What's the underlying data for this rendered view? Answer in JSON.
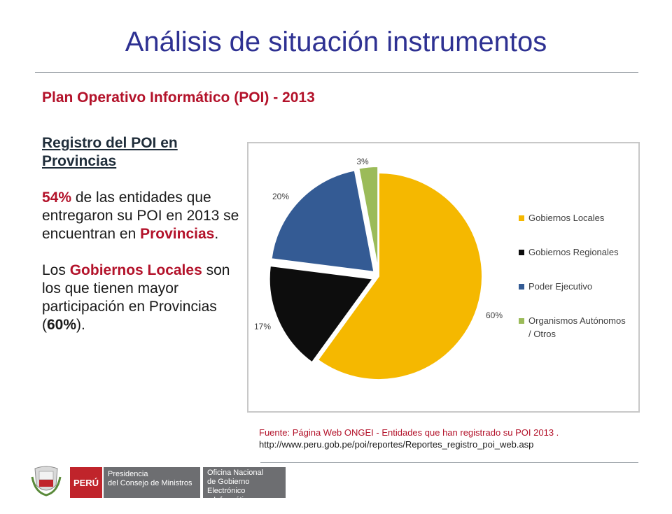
{
  "slide": {
    "title": "Análisis de situación instrumentos",
    "subtitle": "Plan Operativo Informático (POI) - 2013"
  },
  "left_panel": {
    "heading": "Registro del POI en Provincias",
    "p1": {
      "pct": "54%",
      "text_a": " de las entidades que entregaron su POI en 2013 se encuentran en ",
      "highlight": "Provincias",
      "text_b": "."
    },
    "p2": {
      "text_a": "Los ",
      "highlight": "Gobiernos Locales",
      "text_b": " son los que tienen mayor participación en Provincias (",
      "pct": "60%",
      "text_c": ")."
    }
  },
  "chart_data": {
    "type": "pie",
    "title": "",
    "slices": [
      {
        "label": "Gobiernos Locales",
        "value": 60,
        "display": "60%",
        "color": "#f5b800"
      },
      {
        "label": "Gobiernos Regionales",
        "value": 17,
        "display": "17%",
        "color": "#0d0d0d"
      },
      {
        "label": "Poder Ejecutivo",
        "value": 20,
        "display": "20%",
        "color": "#345b94"
      },
      {
        "label": "Organismos Autónomos / Otros",
        "value": 3,
        "display": "3%",
        "color": "#9bbb59"
      }
    ],
    "legend_position": "right"
  },
  "source": {
    "line1": "Fuente: Página Web ONGEI - Entidades que han registrado su POI 2013 .",
    "line2": "http://www.peru.gob.pe/poi/reportes/Reportes_registro_poi_web.asp"
  },
  "footer": {
    "peru": "PERÚ",
    "pcm_line1": "Presidencia",
    "pcm_line2": "del Consejo de Ministros",
    "ongei_line1": "Oficina Nacional",
    "ongei_line2": "de Gobierno Electrónico",
    "ongei_line3": "e Informática - ONGEI"
  }
}
